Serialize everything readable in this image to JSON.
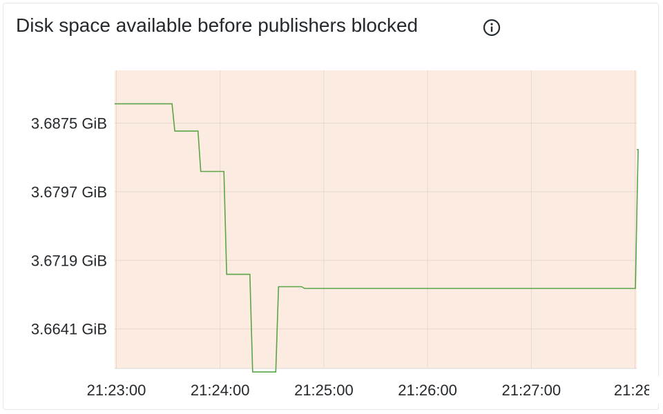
{
  "panel": {
    "title": "Disk space available before publishers blocked",
    "info_icon": "info-icon"
  },
  "colors": {
    "plot_background": "#fcebe0",
    "series_line": "#5aa447",
    "grid": "#e6d8cf",
    "text": "#24292e"
  },
  "chart_data": {
    "type": "line",
    "title": "Disk space available before publishers blocked",
    "xlabel": "",
    "ylabel": "",
    "x_ticks": [
      "21:23:00",
      "21:24:00",
      "21:25:00",
      "21:26:00",
      "21:27:00",
      "21:28:"
    ],
    "y_ticks": [
      "3.6641 GiB",
      "3.6719 GiB",
      "3.6797 GiB",
      "3.6875 GiB"
    ],
    "y_tick_values": [
      3.6641,
      3.6719,
      3.6797,
      3.6875
    ],
    "xlim": [
      "21:22:59",
      "21:28:01"
    ],
    "ylim": [
      3.6596,
      3.6935
    ],
    "grid": true,
    "legend": "none",
    "step": true,
    "series": [
      {
        "x": [
          "21:22:59",
          "21:23:33",
          "21:23:48",
          "21:24:03",
          "21:24:18",
          "21:24:33",
          "21:24:48",
          "21:27:33",
          "21:28:01"
        ],
        "values": [
          3.6897,
          3.6866,
          3.682,
          3.6703,
          3.6592,
          3.6689,
          3.6687,
          3.6687,
          3.6845
        ]
      }
    ]
  }
}
